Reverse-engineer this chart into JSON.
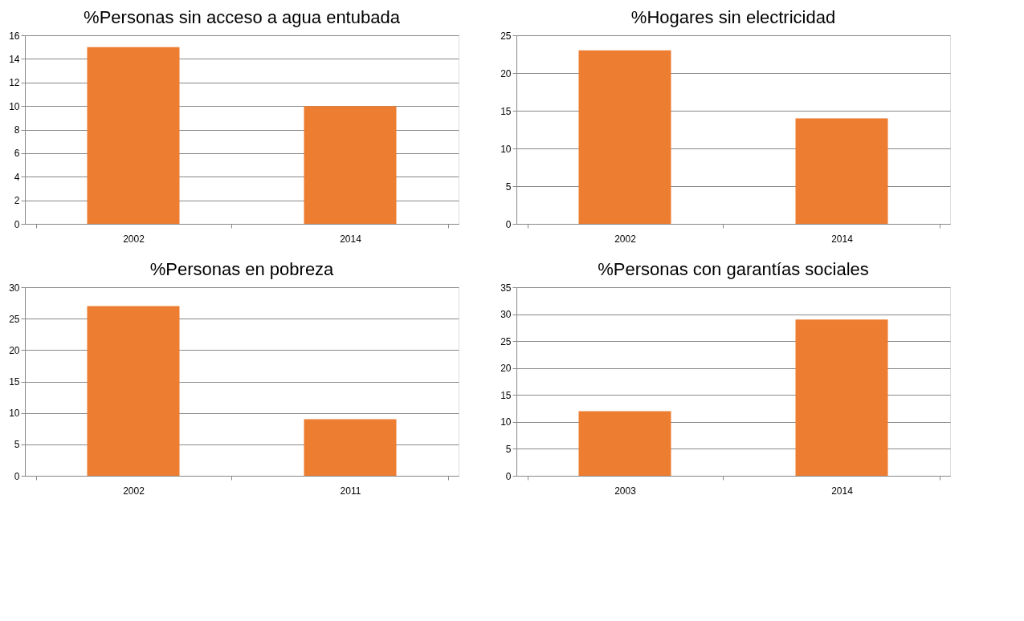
{
  "chart_data": [
    {
      "type": "bar",
      "title": "%Personas sin acceso a agua entubada",
      "categories": [
        "2002",
        "2014"
      ],
      "values": [
        15,
        10
      ],
      "color": "#ed7d31",
      "ylim": [
        0,
        16
      ],
      "yticks": [
        0,
        2,
        4,
        6,
        8,
        10,
        12,
        14,
        16
      ],
      "grid": "y",
      "legend": false
    },
    {
      "type": "bar",
      "title": "%Hogares sin electricidad",
      "categories": [
        "2002",
        "2014"
      ],
      "values": [
        23,
        14
      ],
      "color": "#ed7d31",
      "ylim": [
        0,
        25
      ],
      "yticks": [
        0,
        5,
        10,
        15,
        20,
        25
      ],
      "grid": "y",
      "legend": false
    },
    {
      "type": "bar",
      "title": "%Personas en pobreza",
      "categories": [
        "2002",
        "2011"
      ],
      "values": [
        27,
        9
      ],
      "color": "#ed7d31",
      "ylim": [
        0,
        30
      ],
      "yticks": [
        0,
        5,
        10,
        15,
        20,
        25,
        30
      ],
      "grid": "y",
      "legend": false
    },
    {
      "type": "bar",
      "title": "%Personas con garantías sociales",
      "categories": [
        "2003",
        "2014"
      ],
      "values": [
        12,
        29
      ],
      "color": "#ed7d31",
      "ylim": [
        0,
        35
      ],
      "yticks": [
        0,
        5,
        10,
        15,
        20,
        25,
        30,
        35
      ],
      "grid": "y",
      "legend": false
    }
  ]
}
